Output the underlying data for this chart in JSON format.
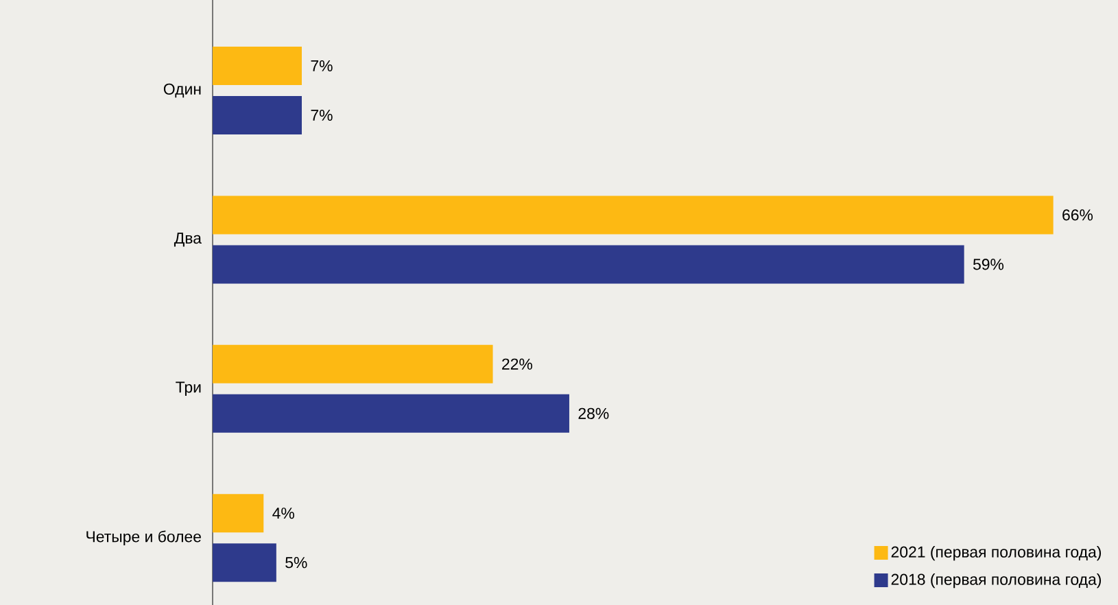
{
  "chart_data": {
    "type": "bar",
    "orientation": "horizontal",
    "categories": [
      "Один",
      "Два",
      "Три",
      "Четыре и более"
    ],
    "series": [
      {
        "name": "2021 (первая половина года)",
        "color": "#fdb913",
        "values": [
          7,
          66,
          22,
          4
        ],
        "value_labels": [
          "7%",
          "66%",
          "22%",
          "4%"
        ]
      },
      {
        "name": "2018 (первая половина года)",
        "color": "#2e3a8c",
        "values": [
          7,
          59,
          28,
          5
        ],
        "value_labels": [
          "7%",
          "59%",
          "28%",
          "5%"
        ]
      }
    ],
    "legend": "bottom right"
  }
}
